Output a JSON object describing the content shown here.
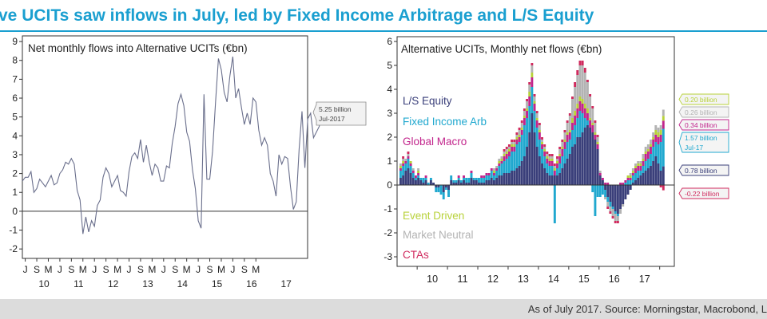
{
  "headline": "ve UCITs saw inflows in July, led by Fixed Income Arbitrage and L/S Equity",
  "footer": "As of July 2017. Source: Morningstar, Macrobond, L",
  "colors": {
    "headline": "#1a9fd0",
    "line": "#6a6f8c",
    "ls_equity": "#3a3f7a",
    "fixed_income_arb": "#20a8cf",
    "global_macro": "#c2258c",
    "event_driven": "#b8d23a",
    "market_neutral": "#b3b3b3",
    "ctas": "#d02a5e"
  },
  "chart_data": [
    {
      "type": "line",
      "title": "Net monthly flows into Alternative UCITs (€bn)",
      "ylim": [
        -2.5,
        9.3
      ],
      "yticks": [
        "9",
        "8",
        "7",
        "6",
        "5",
        "4",
        "3",
        "2",
        "1",
        "0",
        "-1",
        "-2"
      ],
      "xticks": [
        "J",
        "S",
        "M",
        "J",
        "S",
        "M",
        "J",
        "S",
        "M",
        "J",
        "S",
        "M",
        "J",
        "S",
        "M",
        "J",
        "S",
        "M",
        "J",
        "S",
        "M"
      ],
      "year_labels": [
        "10",
        "11",
        "12",
        "13",
        "14",
        "15",
        "16",
        "17"
      ],
      "annotation": [
        "5.25 billion",
        "Jul-2017"
      ],
      "series": [
        {
          "x_start": "2009-06",
          "values": [
            1.6,
            1.8,
            1.8,
            2.1,
            1.0,
            1.2,
            1.7,
            1.5,
            1.3,
            1.6,
            1.9,
            1.4,
            1.5,
            2.0,
            2.2,
            2.6,
            2.5,
            2.8,
            2.5,
            1.1,
            0.6,
            -1.2,
            -0.3,
            -1.1,
            -0.5,
            -0.8,
            0.3,
            0.6,
            1.8,
            2.3,
            2.0,
            1.3,
            1.6,
            1.9,
            1.1,
            1.0,
            0.8,
            2.1,
            2.9,
            3.1,
            2.8,
            3.8,
            2.6,
            3.5,
            2.6,
            1.9,
            2.5,
            2.3,
            1.6,
            1.6,
            2.4,
            2.3,
            3.6,
            4.5,
            5.7,
            6.2,
            5.6,
            4.2,
            3.7,
            2.2,
            1.2,
            -0.5,
            -0.9,
            6.2,
            1.7,
            1.7,
            3.2,
            5.8,
            8.1,
            7.5,
            6.3,
            5.8,
            7.2,
            8.2,
            6.0,
            6.5,
            5.5,
            4.6,
            5.2,
            4.6,
            6.0,
            5.8,
            4.3,
            3.5,
            3.9,
            3.5,
            2.0,
            1.6,
            0.8,
            3.0,
            2.5,
            2.9,
            2.8,
            1.3,
            0.1,
            0.5,
            3.3,
            5.3,
            2.3,
            4.9,
            5.2,
            3.9,
            4.2,
            4.5,
            5.25
          ]
        }
      ]
    },
    {
      "type": "bar",
      "stacked": true,
      "title": "Alternative UCITs, Monthly net flows (€bn)",
      "ylim": [
        -3.4,
        6.2
      ],
      "yticks": [
        "6",
        "5",
        "4",
        "3",
        "2",
        "1",
        "0",
        "-1",
        "-2",
        "-3"
      ],
      "year_labels": [
        "10",
        "11",
        "12",
        "13",
        "14",
        "15",
        "16",
        "17"
      ],
      "legend": [
        "L/S Equity",
        "Fixed Income Arb",
        "Global Macro",
        "Event Driven",
        "Market Neutral",
        "CTAs"
      ],
      "annotations": [
        "0.20 billion",
        "0.26 billion",
        "0.34 billion",
        "1.57 billion",
        "Jul-17",
        "0.78 billion",
        "-0.22 billion"
      ],
      "series": [
        {
          "name": "L/S Equity",
          "values": [
            0.3,
            0.4,
            0.6,
            0.7,
            0.5,
            0.3,
            0.2,
            0.3,
            0.2,
            0.1,
            0.2,
            0.0,
            0.2,
            0.1,
            -0.1,
            -0.1,
            0.0,
            -0.3,
            -0.1,
            -0.2,
            0.2,
            0.1,
            0.1,
            0.2,
            0.1,
            0.2,
            0.1,
            0.1,
            0.3,
            0.2,
            0.2,
            0.1,
            0.1,
            0.1,
            0.2,
            0.2,
            0.3,
            0.2,
            0.3,
            0.4,
            0.4,
            0.5,
            0.5,
            0.5,
            0.6,
            0.6,
            0.7,
            0.8,
            1.0,
            1.2,
            1.6,
            2.2,
            3.0,
            2.2,
            1.6,
            1.2,
            0.9,
            0.7,
            0.5,
            0.4,
            0.4,
            0.4,
            0.4,
            0.5,
            0.7,
            0.9,
            1.1,
            1.3,
            1.6,
            1.7,
            2.0,
            2.0,
            2.2,
            2.4,
            2.5,
            2.4,
            2.2,
            1.9,
            1.5,
            0.4,
            0.2,
            -0.2,
            -0.5,
            -0.7,
            -0.9,
            -1.1,
            -1.2,
            -1.0,
            -0.8,
            -0.6,
            -0.4,
            -0.2,
            0.1,
            0.2,
            0.3,
            0.4,
            0.5,
            0.6,
            0.7,
            0.8,
            1.0,
            1.2,
            0.9,
            0.6,
            0.78
          ]
        },
        {
          "name": "Fixed Income Arb",
          "values": [
            0.3,
            0.4,
            0.3,
            0.4,
            0.3,
            0.2,
            0.1,
            0.1,
            0.1,
            0.2,
            0.1,
            0.1,
            0.1,
            0.0,
            -0.2,
            -0.2,
            -0.4,
            -0.3,
            -0.1,
            -0.3,
            0.2,
            0.1,
            0.1,
            0.1,
            0.1,
            0.1,
            0.2,
            0.2,
            0.2,
            0.1,
            0.1,
            0.2,
            0.2,
            0.2,
            0.2,
            0.2,
            0.3,
            0.2,
            0.3,
            0.4,
            0.5,
            0.5,
            0.6,
            0.7,
            0.8,
            0.8,
            1.0,
            1.0,
            1.1,
            1.3,
            1.2,
            1.1,
            1.1,
            0.9,
            0.8,
            0.7,
            0.6,
            0.5,
            0.4,
            0.4,
            0.4,
            -1.6,
            0.3,
            0.4,
            0.5,
            0.6,
            0.7,
            0.6,
            0.7,
            0.8,
            0.8,
            1.1,
            0.8,
            0.4,
            0.2,
            0.0,
            -0.3,
            -1.3,
            -0.5,
            -0.5,
            -0.4,
            -0.3,
            -0.2,
            -0.2,
            -0.1,
            -0.1,
            -0.1,
            0.0,
            0.0,
            0.1,
            0.2,
            0.2,
            0.3,
            0.3,
            0.3,
            0.2,
            0.3,
            0.4,
            0.4,
            0.5,
            0.6,
            0.6,
            0.8,
            1.2,
            1.57
          ]
        },
        {
          "name": "Global Macro",
          "values": [
            0.1,
            0.1,
            0.1,
            0.1,
            0.1,
            0.1,
            0.1,
            0.1,
            0.0,
            0.0,
            0.1,
            0.0,
            0.0,
            0.0,
            0.0,
            0.0,
            0.0,
            0.0,
            0.0,
            0.0,
            0.0,
            0.0,
            0.0,
            0.1,
            0.0,
            0.1,
            0.0,
            0.0,
            0.1,
            0.0,
            0.0,
            0.0,
            0.1,
            0.1,
            0.1,
            0.1,
            0.1,
            0.1,
            0.1,
            0.1,
            0.1,
            0.2,
            0.2,
            0.2,
            0.2,
            0.2,
            0.2,
            0.2,
            0.2,
            0.3,
            0.3,
            0.4,
            0.4,
            0.3,
            0.3,
            0.3,
            0.2,
            0.2,
            0.2,
            0.2,
            0.2,
            0.2,
            0.2,
            0.3,
            0.3,
            0.3,
            0.3,
            0.3,
            0.3,
            0.4,
            0.4,
            0.4,
            0.4,
            0.4,
            0.3,
            0.3,
            0.3,
            0.2,
            0.2,
            0.1,
            0.1,
            0.1,
            0.1,
            0.0,
            0.0,
            0.0,
            0.0,
            0.1,
            0.1,
            0.1,
            0.1,
            0.1,
            0.1,
            0.2,
            0.2,
            0.2,
            0.2,
            0.3,
            0.3,
            0.3,
            0.3,
            0.3,
            0.3,
            0.3,
            0.34
          ]
        },
        {
          "name": "Event Driven",
          "values": [
            0.1,
            0.1,
            0.0,
            0.0,
            0.1,
            0.0,
            0.0,
            0.1,
            0.0,
            0.0,
            0.0,
            0.0,
            0.0,
            0.0,
            0.0,
            0.0,
            0.0,
            0.0,
            0.0,
            0.0,
            0.0,
            0.0,
            0.0,
            0.0,
            0.0,
            0.0,
            0.0,
            0.0,
            0.0,
            0.0,
            0.0,
            0.0,
            0.0,
            0.0,
            0.0,
            0.0,
            0.0,
            0.1,
            0.0,
            0.1,
            0.1,
            0.1,
            0.1,
            0.1,
            0.1,
            0.1,
            0.1,
            0.1,
            0.1,
            0.1,
            0.1,
            0.2,
            0.2,
            0.1,
            0.1,
            0.1,
            0.1,
            0.1,
            0.1,
            0.1,
            0.1,
            0.1,
            0.1,
            0.1,
            0.1,
            0.1,
            0.1,
            0.1,
            0.2,
            0.2,
            0.2,
            0.2,
            0.2,
            0.2,
            0.2,
            0.1,
            0.1,
            0.1,
            0.1,
            0.0,
            0.0,
            0.0,
            0.0,
            0.0,
            0.0,
            0.0,
            0.0,
            0.0,
            0.0,
            0.0,
            0.1,
            0.1,
            0.1,
            0.1,
            0.1,
            0.1,
            0.1,
            0.1,
            0.1,
            0.1,
            0.1,
            0.2,
            0.2,
            0.2,
            0.2
          ]
        },
        {
          "name": "Market Neutral",
          "values": [
            0.1,
            0.1,
            0.1,
            0.1,
            0.0,
            0.1,
            0.0,
            0.1,
            0.0,
            0.0,
            0.0,
            0.0,
            0.0,
            0.0,
            0.0,
            0.0,
            0.0,
            0.0,
            0.0,
            0.0,
            0.0,
            0.0,
            0.0,
            0.0,
            0.0,
            0.0,
            0.0,
            0.0,
            0.0,
            0.0,
            0.0,
            0.0,
            0.0,
            0.0,
            0.0,
            0.0,
            0.0,
            0.1,
            0.1,
            0.1,
            0.1,
            0.1,
            0.1,
            0.1,
            0.1,
            0.1,
            0.1,
            0.2,
            0.2,
            0.2,
            0.3,
            0.3,
            0.3,
            0.2,
            0.2,
            0.2,
            0.1,
            0.1,
            0.1,
            0.1,
            0.1,
            0.1,
            0.1,
            0.2,
            0.2,
            0.3,
            0.4,
            0.6,
            0.8,
            1.0,
            1.2,
            1.3,
            1.4,
            1.3,
            1.1,
            0.9,
            0.6,
            0.4,
            0.2,
            0.1,
            0.0,
            -0.1,
            -0.2,
            -0.2,
            -0.3,
            -0.3,
            -0.2,
            -0.2,
            -0.1,
            0.0,
            0.0,
            0.1,
            0.1,
            0.1,
            0.1,
            0.1,
            0.2,
            0.2,
            0.2,
            0.2,
            0.2,
            0.2,
            0.2,
            0.2,
            0.26
          ]
        },
        {
          "name": "CTAs",
          "values": [
            0.0,
            0.1,
            0.0,
            0.1,
            0.0,
            0.0,
            0.0,
            0.0,
            0.0,
            0.0,
            0.0,
            0.0,
            0.0,
            0.0,
            0.0,
            0.0,
            0.0,
            0.0,
            0.0,
            0.0,
            0.0,
            0.0,
            0.0,
            0.0,
            0.0,
            0.0,
            0.0,
            0.0,
            0.0,
            0.0,
            0.0,
            0.0,
            0.0,
            0.0,
            0.0,
            0.0,
            0.0,
            0.0,
            0.0,
            0.0,
            0.0,
            0.1,
            0.1,
            0.1,
            0.1,
            0.1,
            0.1,
            0.1,
            0.1,
            0.1,
            0.1,
            0.1,
            0.1,
            0.1,
            0.1,
            0.1,
            0.1,
            0.1,
            0.1,
            0.1,
            0.1,
            0.1,
            0.1,
            0.1,
            0.1,
            0.1,
            0.1,
            0.1,
            0.1,
            0.2,
            0.2,
            0.2,
            0.2,
            0.2,
            0.1,
            0.1,
            0.1,
            0.1,
            0.1,
            0.0,
            0.0,
            0.0,
            -0.1,
            -0.1,
            -0.1,
            -0.1,
            -0.1,
            0.0,
            0.0,
            0.0,
            0.0,
            0.0,
            0.0,
            0.0,
            0.0,
            0.0,
            0.0,
            0.0,
            0.0,
            0.0,
            0.0,
            0.0,
            0.0,
            -0.1,
            -0.22
          ]
        }
      ]
    }
  ]
}
